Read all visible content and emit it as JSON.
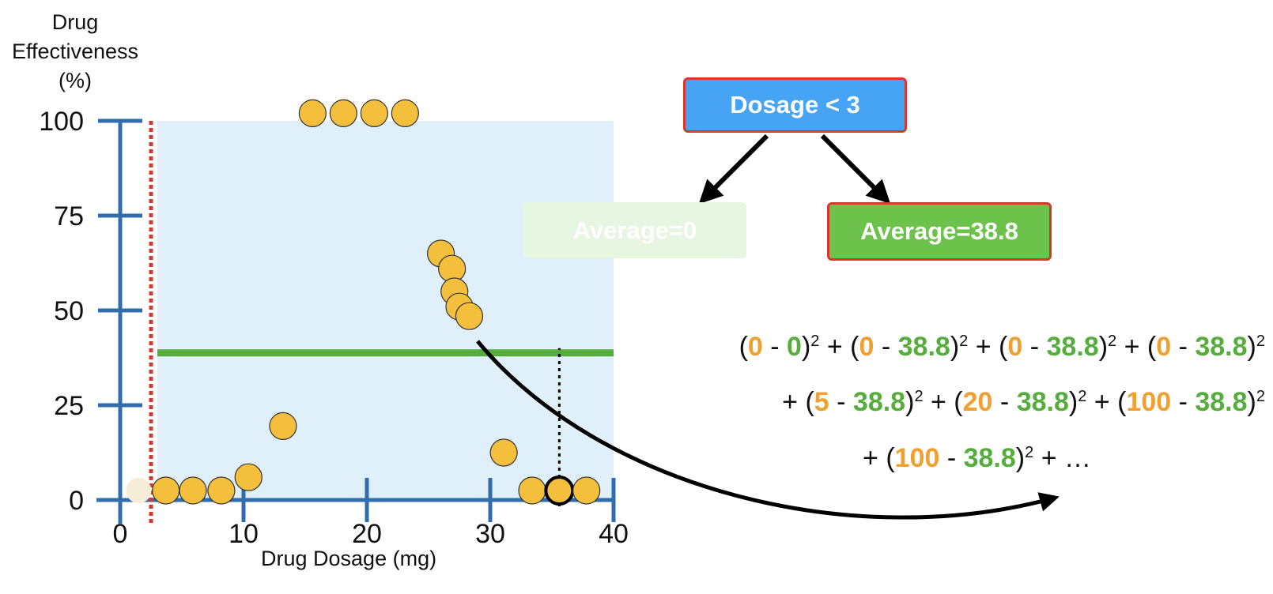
{
  "chart_data": {
    "type": "scatter",
    "ylabel_lines": [
      "Drug",
      "Effectiveness",
      "(%)"
    ],
    "xlabel": "Drug Dosage (mg)",
    "xlim": [
      0,
      40
    ],
    "ylim": [
      0,
      100
    ],
    "x_ticks": [
      "0",
      "10",
      "20",
      "30",
      "40"
    ],
    "y_ticks": [
      "0",
      "25",
      "50",
      "75",
      "100"
    ],
    "x_tick_values": [
      0,
      10,
      20,
      30,
      40
    ],
    "y_tick_values": [
      0,
      25,
      50,
      75,
      100
    ],
    "threshold_x": 2.5,
    "right_region_average": 38.8,
    "highlighted_point_index": 15,
    "faded_points": [
      {
        "x": 1.5,
        "y": 2.5
      }
    ],
    "points": [
      {
        "x": 3.7,
        "y": 2.5
      },
      {
        "x": 5.9,
        "y": 2.5
      },
      {
        "x": 8.2,
        "y": 2.5
      },
      {
        "x": 10.4,
        "y": 6
      },
      {
        "x": 13.2,
        "y": 19.5
      },
      {
        "x": 15.6,
        "y": 102
      },
      {
        "x": 18.1,
        "y": 102
      },
      {
        "x": 20.6,
        "y": 102
      },
      {
        "x": 23.1,
        "y": 102
      },
      {
        "x": 26.0,
        "y": 65
      },
      {
        "x": 26.9,
        "y": 61
      },
      {
        "x": 27.1,
        "y": 55
      },
      {
        "x": 27.5,
        "y": 51
      },
      {
        "x": 31.1,
        "y": 12.5
      },
      {
        "x": 33.4,
        "y": 2.5
      },
      {
        "x": 35.6,
        "y": 2.5
      },
      {
        "x": 37.8,
        "y": 2.5
      },
      {
        "x": 28.3,
        "y": 48.5
      }
    ]
  },
  "colors": {
    "axis": "#2f6db0",
    "region": "#e0f0fb",
    "point_fill": "#f4bf3d",
    "point_stroke": "#333333",
    "threshold": "#d9372c",
    "average_line": "#55ad3c",
    "faded_point": "#f7ecd5"
  },
  "tree": {
    "root_label": "Dosage < 3",
    "left_label": "Average=0",
    "right_label": "Average=38.8"
  },
  "equation": {
    "line1": [
      "(",
      "0",
      " - ",
      "0",
      ")",
      "2",
      " + (",
      "0",
      " - ",
      "38.8",
      ")",
      "2",
      " + (",
      "0",
      " - ",
      "38.8",
      ")",
      "2",
      " + (",
      "0",
      " - ",
      "38.8",
      ")",
      "2"
    ],
    "line2": [
      "+ (",
      "5",
      " - ",
      "38.8",
      ")",
      "2",
      " + (",
      "20",
      " - ",
      "38.8",
      ")",
      "2",
      " + (",
      "100",
      " - ",
      "38.8",
      ")",
      "2"
    ],
    "line3": [
      "+ (",
      "100",
      " - ",
      "38.8",
      ")",
      "2",
      " + …"
    ]
  }
}
